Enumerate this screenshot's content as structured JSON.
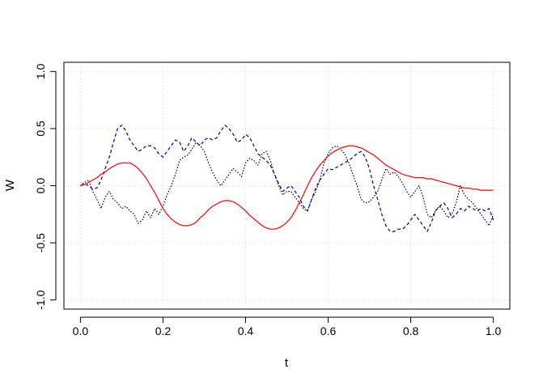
{
  "chart_data": {
    "type": "line",
    "title": "",
    "xlabel": "t",
    "ylabel": "W",
    "xlim": [
      -0.04,
      1.04
    ],
    "ylim": [
      -1.08,
      1.08
    ],
    "xticks": [
      0.0,
      0.2,
      0.4,
      0.6,
      0.8,
      1.0
    ],
    "xtick_labels": [
      "0.0",
      "0.2",
      "0.4",
      "0.6",
      "0.8",
      "1.0"
    ],
    "yticks": [
      -1.0,
      -0.5,
      0.0,
      0.5,
      1.0
    ],
    "ytick_labels": [
      "-1.0",
      "-0.5",
      "0.0",
      "0.5",
      "1.0"
    ],
    "grid": true,
    "legend": "none",
    "series": [
      {
        "color": "#000000",
        "dash": "dotted",
        "x": [
          0.0,
          0.01,
          0.02,
          0.03,
          0.04,
          0.05,
          0.06,
          0.07,
          0.08,
          0.09,
          0.1,
          0.11,
          0.12,
          0.13,
          0.14,
          0.15,
          0.16,
          0.17,
          0.18,
          0.19,
          0.2,
          0.21,
          0.22,
          0.23,
          0.24,
          0.25,
          0.26,
          0.27,
          0.28,
          0.29,
          0.3,
          0.31,
          0.32,
          0.33,
          0.34,
          0.35,
          0.36,
          0.37,
          0.38,
          0.39,
          0.4,
          0.41,
          0.42,
          0.43,
          0.44,
          0.45,
          0.46,
          0.47,
          0.48,
          0.49,
          0.5,
          0.51,
          0.52,
          0.53,
          0.54,
          0.55,
          0.56,
          0.57,
          0.58,
          0.59,
          0.6,
          0.61,
          0.62,
          0.63,
          0.64,
          0.65,
          0.66,
          0.67,
          0.68,
          0.69,
          0.7,
          0.71,
          0.72,
          0.73,
          0.74,
          0.75,
          0.76,
          0.77,
          0.78,
          0.79,
          0.8,
          0.81,
          0.82,
          0.83,
          0.84,
          0.85,
          0.86,
          0.87,
          0.88,
          0.89,
          0.9,
          0.91,
          0.92,
          0.93,
          0.94,
          0.95,
          0.96,
          0.97,
          0.98,
          0.99,
          1.0
        ],
        "y": [
          0.0,
          0.03,
          0.05,
          -0.05,
          -0.12,
          -0.2,
          -0.1,
          -0.05,
          -0.12,
          -0.15,
          -0.2,
          -0.18,
          -0.22,
          -0.25,
          -0.33,
          -0.3,
          -0.22,
          -0.28,
          -0.2,
          -0.25,
          -0.18,
          -0.08,
          0.0,
          0.1,
          0.22,
          0.25,
          0.27,
          0.32,
          0.38,
          0.35,
          0.3,
          0.2,
          0.12,
          0.05,
          0.0,
          0.05,
          0.1,
          0.15,
          0.12,
          0.08,
          0.2,
          0.24,
          0.22,
          0.18,
          0.28,
          0.3,
          0.22,
          0.1,
          0.0,
          -0.08,
          -0.05,
          -0.05,
          -0.1,
          -0.15,
          -0.2,
          -0.22,
          -0.12,
          -0.05,
          0.05,
          0.2,
          0.28,
          0.33,
          0.35,
          0.32,
          0.28,
          0.2,
          0.1,
          0.0,
          -0.12,
          -0.15,
          -0.14,
          -0.1,
          -0.05,
          0.05,
          0.15,
          0.1,
          0.12,
          0.08,
          0.02,
          -0.05,
          -0.1,
          -0.05,
          0.0,
          -0.1,
          -0.25,
          -0.28,
          -0.22,
          -0.18,
          -0.22,
          -0.28,
          -0.25,
          -0.15,
          0.0,
          -0.08,
          -0.12,
          -0.15,
          -0.2,
          -0.25,
          -0.3,
          -0.35,
          -0.25
        ]
      },
      {
        "color": "#00008B",
        "dash": "dashed",
        "x": [
          0.0,
          0.01,
          0.02,
          0.03,
          0.04,
          0.05,
          0.06,
          0.07,
          0.08,
          0.09,
          0.1,
          0.11,
          0.12,
          0.13,
          0.14,
          0.15,
          0.16,
          0.17,
          0.18,
          0.19,
          0.2,
          0.21,
          0.22,
          0.23,
          0.24,
          0.25,
          0.26,
          0.27,
          0.28,
          0.29,
          0.3,
          0.31,
          0.32,
          0.33,
          0.34,
          0.35,
          0.36,
          0.37,
          0.38,
          0.39,
          0.4,
          0.41,
          0.42,
          0.43,
          0.44,
          0.45,
          0.46,
          0.47,
          0.48,
          0.49,
          0.5,
          0.51,
          0.52,
          0.53,
          0.54,
          0.55,
          0.56,
          0.57,
          0.58,
          0.59,
          0.6,
          0.61,
          0.62,
          0.63,
          0.64,
          0.65,
          0.66,
          0.67,
          0.68,
          0.69,
          0.7,
          0.71,
          0.72,
          0.73,
          0.74,
          0.75,
          0.76,
          0.77,
          0.78,
          0.79,
          0.8,
          0.81,
          0.82,
          0.83,
          0.84,
          0.85,
          0.86,
          0.87,
          0.88,
          0.89,
          0.9,
          0.91,
          0.92,
          0.93,
          0.94,
          0.95,
          0.96,
          0.97,
          0.98,
          0.99,
          1.0
        ],
        "y": [
          0.0,
          0.02,
          0.0,
          -0.03,
          -0.02,
          0.05,
          0.15,
          0.25,
          0.38,
          0.5,
          0.53,
          0.48,
          0.4,
          0.35,
          0.3,
          0.32,
          0.35,
          0.35,
          0.33,
          0.28,
          0.25,
          0.3,
          0.35,
          0.4,
          0.38,
          0.3,
          0.35,
          0.42,
          0.38,
          0.35,
          0.4,
          0.42,
          0.4,
          0.42,
          0.48,
          0.53,
          0.5,
          0.45,
          0.38,
          0.4,
          0.45,
          0.42,
          0.35,
          0.28,
          0.25,
          0.22,
          0.18,
          0.1,
          0.02,
          -0.05,
          -0.02,
          0.0,
          -0.05,
          -0.1,
          -0.18,
          -0.22,
          -0.12,
          -0.02,
          0.05,
          0.1,
          0.15,
          0.14,
          0.16,
          0.18,
          0.2,
          0.22,
          0.25,
          0.28,
          0.3,
          0.25,
          0.15,
          0.0,
          -0.12,
          -0.25,
          -0.35,
          -0.4,
          -0.4,
          -0.38,
          -0.38,
          -0.35,
          -0.3,
          -0.25,
          -0.3,
          -0.35,
          -0.4,
          -0.32,
          -0.22,
          -0.18,
          -0.15,
          -0.2,
          -0.28,
          -0.25,
          -0.2,
          -0.22,
          -0.18,
          -0.2,
          -0.22,
          -0.2,
          -0.22,
          -0.2,
          -0.3
        ]
      },
      {
        "color": "#FF0000",
        "dash": "solid",
        "x": [
          0.0,
          0.01,
          0.02,
          0.03,
          0.04,
          0.05,
          0.06,
          0.07,
          0.08,
          0.09,
          0.1,
          0.11,
          0.12,
          0.13,
          0.14,
          0.15,
          0.16,
          0.17,
          0.18,
          0.19,
          0.2,
          0.21,
          0.22,
          0.23,
          0.24,
          0.25,
          0.26,
          0.27,
          0.28,
          0.29,
          0.3,
          0.31,
          0.32,
          0.33,
          0.34,
          0.35,
          0.36,
          0.37,
          0.38,
          0.39,
          0.4,
          0.41,
          0.42,
          0.43,
          0.44,
          0.45,
          0.46,
          0.47,
          0.48,
          0.49,
          0.5,
          0.51,
          0.52,
          0.53,
          0.54,
          0.55,
          0.56,
          0.57,
          0.58,
          0.59,
          0.6,
          0.61,
          0.62,
          0.63,
          0.64,
          0.65,
          0.66,
          0.67,
          0.68,
          0.69,
          0.7,
          0.71,
          0.72,
          0.73,
          0.74,
          0.75,
          0.76,
          0.77,
          0.78,
          0.79,
          0.8,
          0.81,
          0.82,
          0.83,
          0.84,
          0.85,
          0.86,
          0.87,
          0.88,
          0.89,
          0.9,
          0.91,
          0.92,
          0.93,
          0.94,
          0.95,
          0.96,
          0.97,
          0.98,
          0.99,
          1.0
        ],
        "y": [
          0.0,
          0.01,
          0.03,
          0.05,
          0.07,
          0.1,
          0.12,
          0.15,
          0.17,
          0.19,
          0.2,
          0.2,
          0.2,
          0.18,
          0.15,
          0.11,
          0.06,
          0.0,
          -0.06,
          -0.13,
          -0.2,
          -0.25,
          -0.29,
          -0.32,
          -0.34,
          -0.35,
          -0.35,
          -0.34,
          -0.32,
          -0.28,
          -0.25,
          -0.21,
          -0.18,
          -0.16,
          -0.14,
          -0.13,
          -0.13,
          -0.14,
          -0.16,
          -0.19,
          -0.22,
          -0.26,
          -0.29,
          -0.32,
          -0.35,
          -0.37,
          -0.38,
          -0.38,
          -0.37,
          -0.35,
          -0.32,
          -0.28,
          -0.22,
          -0.15,
          -0.08,
          0.0,
          0.07,
          0.13,
          0.18,
          0.22,
          0.26,
          0.29,
          0.31,
          0.33,
          0.34,
          0.35,
          0.35,
          0.34,
          0.33,
          0.31,
          0.29,
          0.27,
          0.24,
          0.21,
          0.18,
          0.16,
          0.14,
          0.12,
          0.1,
          0.09,
          0.08,
          0.07,
          0.07,
          0.07,
          0.06,
          0.06,
          0.05,
          0.04,
          0.03,
          0.02,
          0.01,
          0.0,
          -0.01,
          -0.02,
          -0.02,
          -0.03,
          -0.03,
          -0.04,
          -0.04,
          -0.04,
          -0.04
        ]
      }
    ]
  }
}
